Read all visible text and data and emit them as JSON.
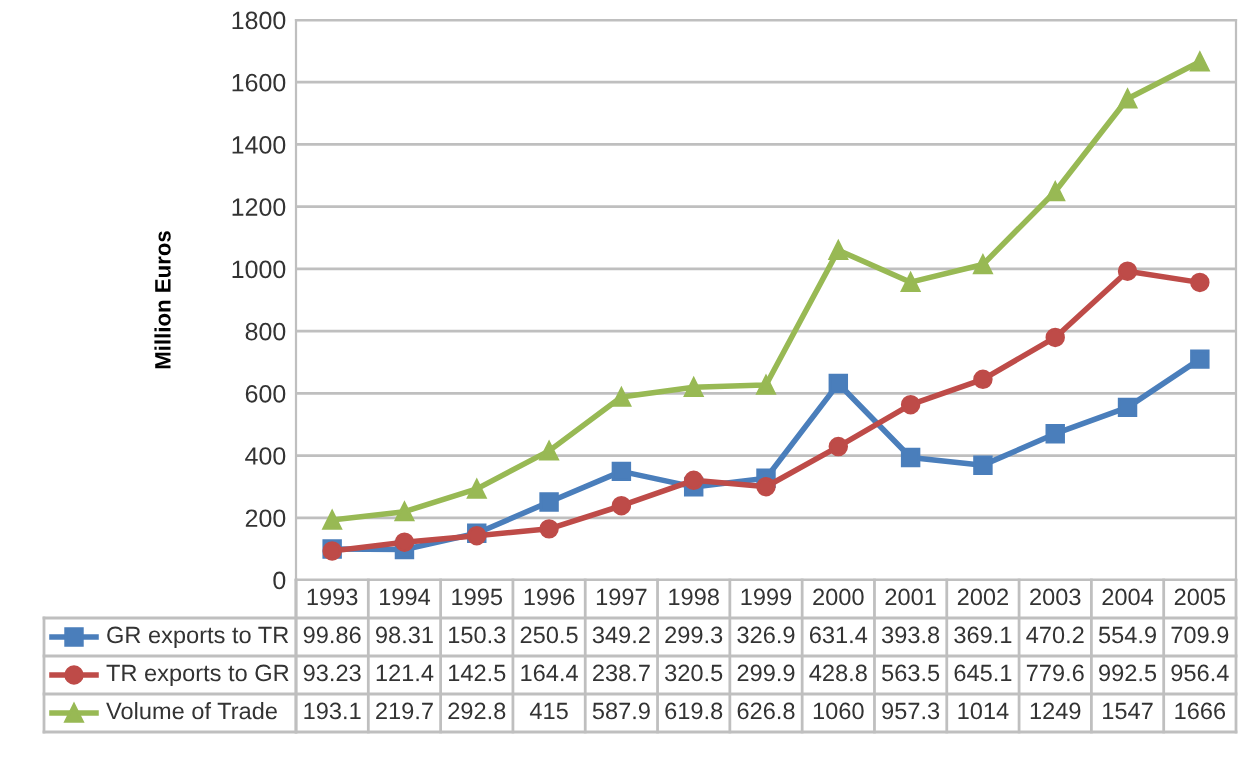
{
  "chart_data": {
    "type": "line",
    "ylabel": "Million Euros",
    "categories": [
      "1993",
      "1994",
      "1995",
      "1996",
      "1997",
      "1998",
      "1999",
      "2000",
      "2001",
      "2002",
      "2003",
      "2004",
      "2005"
    ],
    "series": [
      {
        "name": "GR exports to TR",
        "color": "#4a7ebb",
        "marker": "square",
        "values": [
          99.86,
          98.31,
          150.3,
          250.5,
          349.2,
          299.3,
          326.9,
          631.4,
          393.8,
          369.1,
          470.2,
          554.9,
          709.9
        ],
        "value_labels": [
          "99.86",
          "98.31",
          "150.3",
          "250.5",
          "349.2",
          "299.3",
          "326.9",
          "631.4",
          "393.8",
          "369.1",
          "470.2",
          "554.9",
          "709.9"
        ]
      },
      {
        "name": "TR exports to GR",
        "color": "#be4b48",
        "marker": "circle",
        "values": [
          93.23,
          121.4,
          142.5,
          164.4,
          238.7,
          320.5,
          299.9,
          428.8,
          563.5,
          645.1,
          779.6,
          992.5,
          956.4
        ],
        "value_labels": [
          "93.23",
          "121.4",
          "142.5",
          "164.4",
          "238.7",
          "320.5",
          "299.9",
          "428.8",
          "563.5",
          "645.1",
          "779.6",
          "992.5",
          "956.4"
        ]
      },
      {
        "name": "Volume of Trade",
        "color": "#98b954",
        "marker": "triangle",
        "values": [
          193.1,
          219.7,
          292.8,
          415,
          587.9,
          619.8,
          626.8,
          1060,
          957.3,
          1014,
          1249,
          1547,
          1666
        ],
        "value_labels": [
          "193.1",
          "219.7",
          "292.8",
          "415",
          "587.9",
          "619.8",
          "626.8",
          "1060",
          "957.3",
          "1014",
          "1249",
          "1547",
          "1666"
        ]
      }
    ],
    "ylim": [
      0,
      1800
    ],
    "yticks": [
      0,
      200,
      400,
      600,
      800,
      1000,
      1200,
      1400,
      1600,
      1800
    ],
    "grid": "y",
    "legend": "bottom",
    "line_style": "solid"
  }
}
